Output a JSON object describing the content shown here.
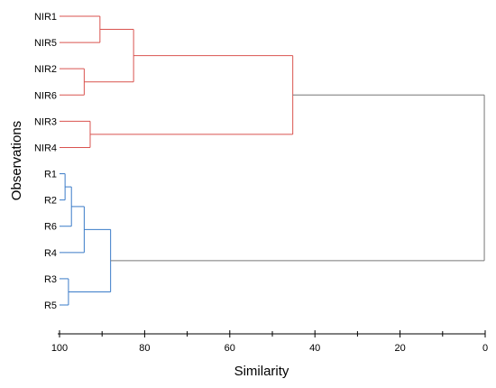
{
  "chart_data": {
    "type": "dendrogram",
    "xlabel": "Similarity",
    "ylabel": "Observations",
    "xlim": [
      100,
      0
    ],
    "xticks": [
      100,
      80,
      60,
      40,
      20,
      0
    ],
    "xtick_labels": [
      "100",
      "80",
      "60",
      "40",
      "20",
      "0"
    ],
    "leaves": [
      "NIR1",
      "NIR5",
      "NIR2",
      "NIR6",
      "NIR3",
      "NIR4",
      "R1",
      "R2",
      "R6",
      "R4",
      "R3",
      "R5"
    ],
    "merges": [
      {
        "id": "m1",
        "a": "NIR1",
        "b": "NIR5",
        "similarity": 90.5,
        "cluster": "NIR"
      },
      {
        "id": "m2",
        "a": "NIR2",
        "b": "NIR6",
        "similarity": 94.2,
        "cluster": "NIR"
      },
      {
        "id": "m3",
        "a": "NIR3",
        "b": "NIR4",
        "similarity": 92.8,
        "cluster": "NIR"
      },
      {
        "id": "m4",
        "a": "m1",
        "b": "m2",
        "similarity": 82.6,
        "cluster": "NIR"
      },
      {
        "id": "m5",
        "a": "m4",
        "b": "m3",
        "similarity": 45.2,
        "cluster": "NIR"
      },
      {
        "id": "m6",
        "a": "R1",
        "b": "R2",
        "similarity": 98.7,
        "cluster": "R"
      },
      {
        "id": "m7",
        "a": "m6",
        "b": "R6",
        "similarity": 97.2,
        "cluster": "R"
      },
      {
        "id": "m8",
        "a": "m7",
        "b": "R4",
        "similarity": 94.2,
        "cluster": "R"
      },
      {
        "id": "m9",
        "a": "R3",
        "b": "R5",
        "similarity": 97.9,
        "cluster": "R"
      },
      {
        "id": "m10",
        "a": "m8",
        "b": "m9",
        "similarity": 88.0,
        "cluster": "R"
      },
      {
        "id": "m11",
        "a": "m5",
        "b": "m10",
        "similarity": 0.2,
        "cluster": "root"
      }
    ],
    "colors": {
      "NIR": "#d9534f",
      "R": "#3a7bc8",
      "root": "#777777"
    }
  }
}
